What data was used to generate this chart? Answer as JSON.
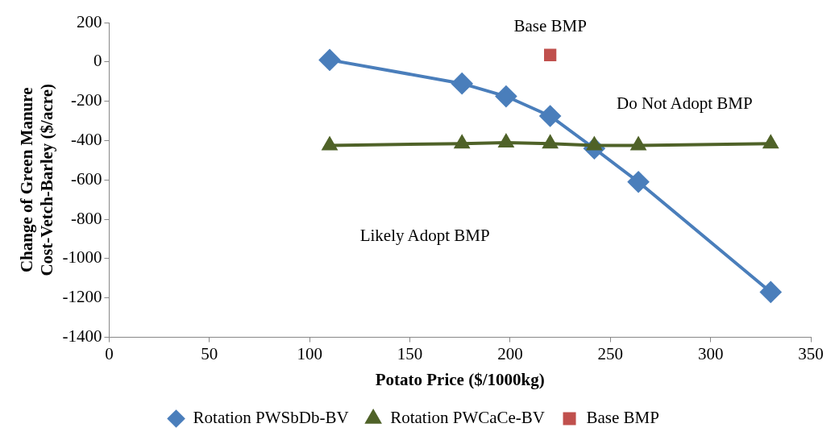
{
  "chart_data": {
    "type": "line",
    "xlabel": "Potato Price ($/1000kg)",
    "ylabel": "Change of Green Manure Cost-Vetch-Barley ($/acre)",
    "xlim": [
      0,
      350
    ],
    "xticks": [
      0,
      50,
      100,
      150,
      200,
      250,
      300,
      350
    ],
    "ylim": [
      -1400,
      200
    ],
    "yticks": [
      -1400,
      -1200,
      -1000,
      -800,
      -600,
      -400,
      -200,
      0,
      200
    ],
    "grid": false,
    "legend": "bottom",
    "series": [
      {
        "name": "Rotation PWSbDb-BV",
        "marker": "diamond",
        "color": "#4a7ebb",
        "x": [
          110,
          176,
          198,
          220,
          242,
          264,
          330
        ],
        "values": [
          10,
          -110,
          -175,
          -275,
          -440,
          -610,
          -1170
        ]
      },
      {
        "name": "Rotation PWCaCe-BV",
        "marker": "triangle",
        "color": "#4f6228",
        "x": [
          110,
          176,
          198,
          220,
          242,
          264,
          330
        ],
        "values": [
          -425,
          -415,
          -410,
          -415,
          -425,
          -425,
          -415
        ]
      },
      {
        "name": "Base BMP",
        "type": "scatter",
        "marker": "square",
        "color": "#c0504d",
        "x": [
          220
        ],
        "values": [
          35
        ]
      }
    ],
    "annotations": [
      {
        "text": "Base BMP",
        "x": 220,
        "y": 35
      },
      "Do Not Adopt BMP",
      "Likely Adopt BMP"
    ]
  }
}
